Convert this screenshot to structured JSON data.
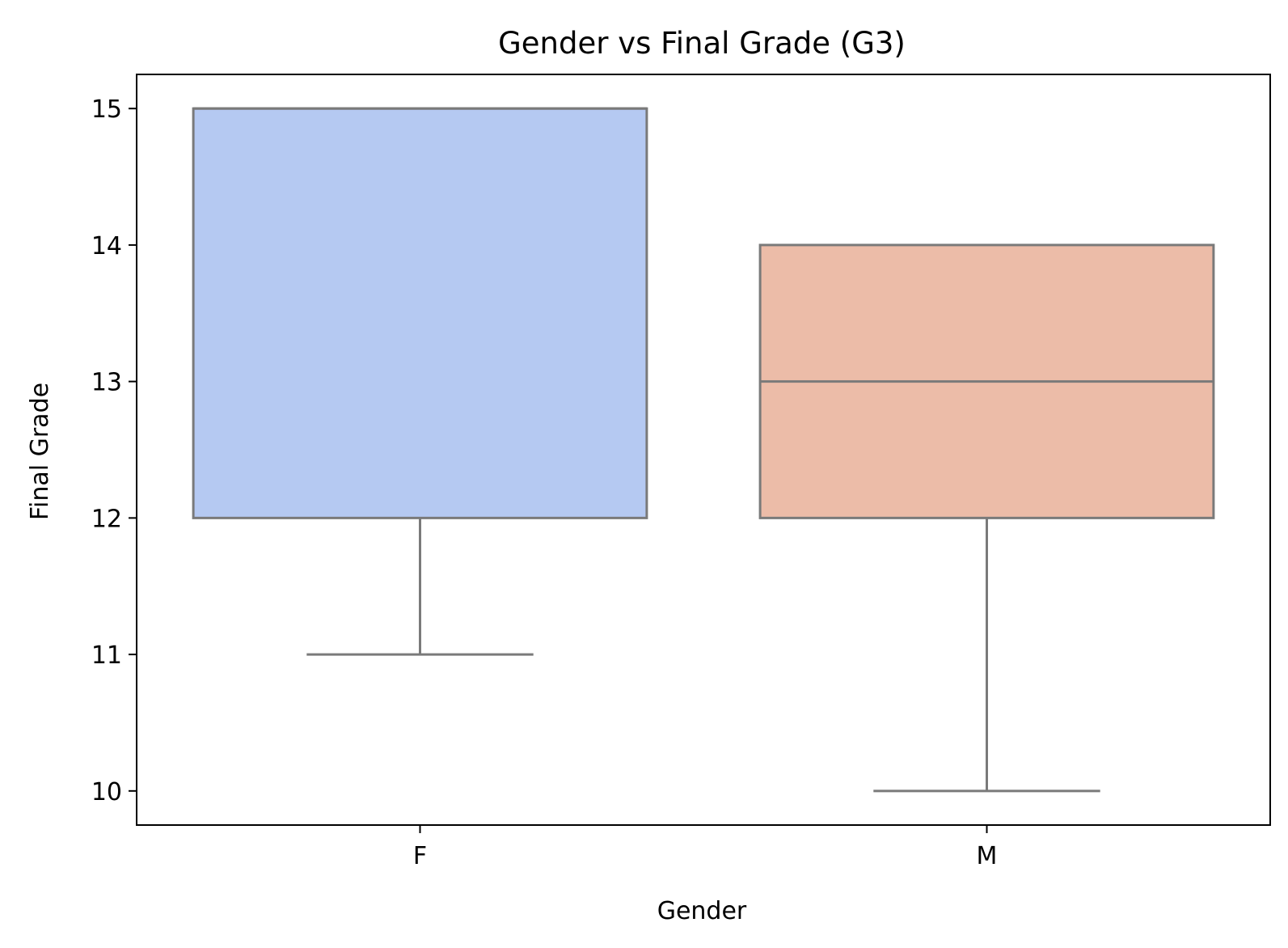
{
  "chart_data": {
    "type": "box",
    "title": "Gender vs Final Grade (G3)",
    "xlabel": "Gender",
    "ylabel": "Final Grade",
    "ylim": [
      9.75,
      15.25
    ],
    "yticks": [
      10,
      11,
      12,
      13,
      14,
      15
    ],
    "grid": false,
    "categories": [
      "F",
      "M"
    ],
    "boxes": [
      {
        "category": "F",
        "whisker_low": 11,
        "q1": 12,
        "median": 15,
        "q3": 15,
        "whisker_high": 15,
        "color": "#b5c9f2"
      },
      {
        "category": "M",
        "whisker_low": 10,
        "q1": 12,
        "median": 13,
        "q3": 14,
        "whisker_high": 14,
        "color": "#ecbca8"
      }
    ],
    "line_color": "#7a7a7a"
  }
}
